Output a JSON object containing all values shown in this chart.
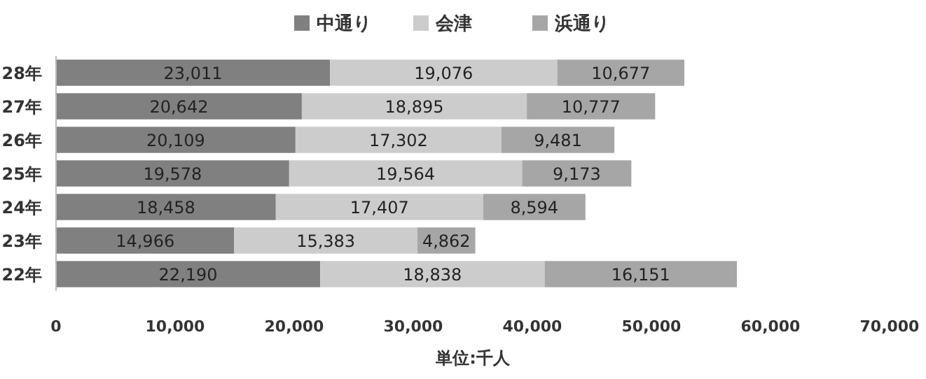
{
  "chart_data": {
    "type": "bar",
    "orientation": "horizontal",
    "stacked": true,
    "legend": "top",
    "xlabel": "単位:千人",
    "categories": [
      "28年",
      "27年",
      "26年",
      "25年",
      "24年",
      "23年",
      "22年"
    ],
    "xlim": [
      0,
      70000
    ],
    "xticks": [
      {
        "value": 0,
        "label": "0"
      },
      {
        "value": 10000,
        "label": "10,000"
      },
      {
        "value": 20000,
        "label": "20,000"
      },
      {
        "value": 30000,
        "label": "30,000"
      },
      {
        "value": 40000,
        "label": "40,000"
      },
      {
        "value": 50000,
        "label": "50,000"
      },
      {
        "value": 60000,
        "label": "60,000"
      },
      {
        "value": 70000,
        "label": "70,000"
      }
    ],
    "series": [
      {
        "name": "中通り",
        "color": "#808080",
        "values": [
          23011,
          20642,
          20109,
          19578,
          18458,
          14966,
          22190
        ],
        "value_labels": [
          "23,011",
          "20,642",
          "20,109",
          "19,578",
          "18,458",
          "14,966",
          "22,190"
        ]
      },
      {
        "name": "会津",
        "color": "#cccccc",
        "values": [
          19076,
          18895,
          17302,
          19564,
          17407,
          15383,
          18838
        ],
        "value_labels": [
          "19,076",
          "18,895",
          "17,302",
          "19,564",
          "17,407",
          "15,383",
          "18,838"
        ]
      },
      {
        "name": "浜通り",
        "color": "#a6a6a6",
        "values": [
          10677,
          10777,
          9481,
          9173,
          8594,
          4862,
          16151
        ],
        "value_labels": [
          "10,677",
          "10,777",
          "9,481",
          "9,173",
          "8,594",
          "4,862",
          "16,151"
        ]
      }
    ]
  }
}
